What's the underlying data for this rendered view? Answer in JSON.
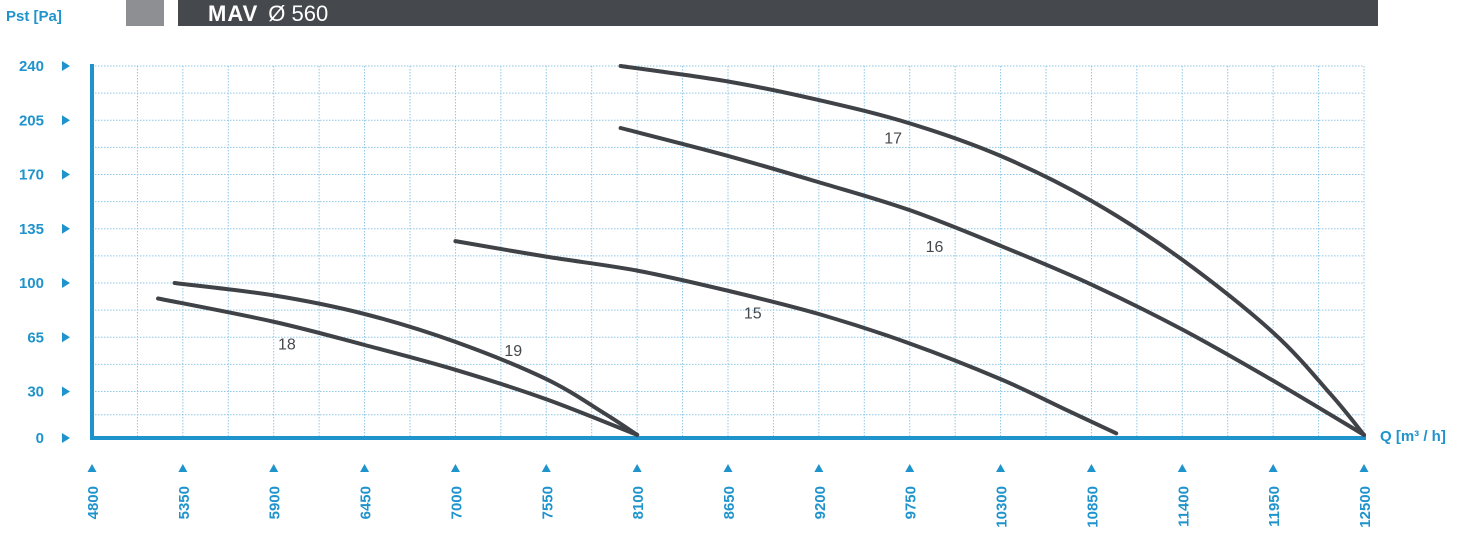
{
  "header": {
    "model": "MAV",
    "size": "Ø 560"
  },
  "chart_data": {
    "type": "line",
    "title": "MAV Ø 560",
    "xlabel": "Q [m³ / h]",
    "ylabel": "Pst [Pa]",
    "xlim": [
      4800,
      12500
    ],
    "ylim": [
      0,
      240
    ],
    "x_ticks": [
      4800,
      5350,
      5900,
      6450,
      7000,
      7550,
      8100,
      8650,
      9200,
      9750,
      10300,
      10850,
      11400,
      11950,
      12500
    ],
    "y_ticks": [
      0,
      30,
      65,
      100,
      135,
      170,
      205,
      240
    ],
    "grid": true,
    "legend": "none",
    "colors": {
      "axis": "#1f93cc",
      "grid": "#8fc7e6",
      "curve": "#3f4247",
      "header": "#45484d"
    },
    "series": [
      {
        "name": "17",
        "points": [
          [
            8000,
            240
          ],
          [
            8650,
            230
          ],
          [
            9200,
            218
          ],
          [
            9750,
            203
          ],
          [
            10300,
            182
          ],
          [
            10850,
            153
          ],
          [
            11400,
            115
          ],
          [
            11950,
            68
          ],
          [
            12300,
            28
          ],
          [
            12500,
            2
          ]
        ],
        "label_at": [
          9650,
          190
        ]
      },
      {
        "name": "16",
        "points": [
          [
            8000,
            200
          ],
          [
            8650,
            182
          ],
          [
            9200,
            165
          ],
          [
            9750,
            147
          ],
          [
            10300,
            124
          ],
          [
            10850,
            99
          ],
          [
            11400,
            70
          ],
          [
            11950,
            37
          ],
          [
            12500,
            2
          ]
        ],
        "label_at": [
          9900,
          120
        ]
      },
      {
        "name": "15",
        "points": [
          [
            7000,
            127
          ],
          [
            7550,
            117
          ],
          [
            8100,
            108
          ],
          [
            8650,
            95
          ],
          [
            9200,
            80
          ],
          [
            9750,
            61
          ],
          [
            10300,
            38
          ],
          [
            10700,
            18
          ],
          [
            11000,
            3
          ]
        ],
        "label_at": [
          8800,
          77
        ]
      },
      {
        "name": "19",
        "points": [
          [
            5300,
            100
          ],
          [
            5900,
            92
          ],
          [
            6450,
            80
          ],
          [
            7000,
            62
          ],
          [
            7550,
            38
          ],
          [
            7900,
            16
          ],
          [
            8100,
            2
          ]
        ],
        "label_at": [
          7350,
          53
        ]
      },
      {
        "name": "18",
        "points": [
          [
            5200,
            90
          ],
          [
            5900,
            75
          ],
          [
            6450,
            60
          ],
          [
            7000,
            44
          ],
          [
            7550,
            25
          ],
          [
            8100,
            2
          ]
        ],
        "label_at": [
          5980,
          57
        ]
      }
    ]
  }
}
